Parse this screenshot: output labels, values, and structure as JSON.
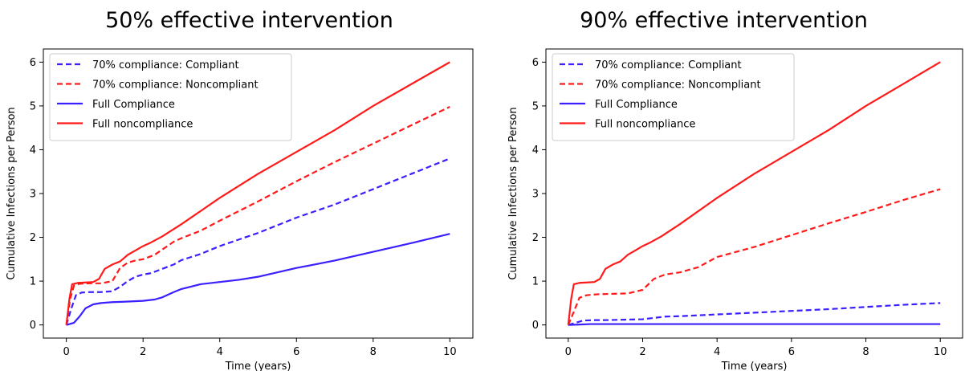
{
  "chart_data": [
    {
      "type": "line",
      "title": "50% effective intervention",
      "xlabel": "Time (years)",
      "ylabel": "Cumulative Infections per Person",
      "xlim": [
        -0.6,
        10.6
      ],
      "ylim": [
        -0.3,
        6.3
      ],
      "xticks": [
        0,
        2,
        4,
        6,
        8,
        10
      ],
      "yticks": [
        0,
        1,
        2,
        3,
        4,
        5,
        6
      ],
      "legend_position": "top-left",
      "series": [
        {
          "name": "70% compliance: Compliant",
          "color": "#3a1fff",
          "style": "dashed",
          "x": [
            0,
            0.12,
            0.25,
            0.4,
            0.6,
            0.9,
            1.2,
            1.4,
            1.6,
            1.8,
            2.0,
            2.2,
            2.5,
            2.8,
            3.0,
            3.5,
            4.0,
            5.0,
            6.0,
            7.0,
            8.0,
            9.0,
            10.0
          ],
          "y": [
            0,
            0.35,
            0.68,
            0.74,
            0.75,
            0.75,
            0.77,
            0.87,
            1.0,
            1.1,
            1.15,
            1.18,
            1.28,
            1.38,
            1.48,
            1.62,
            1.8,
            2.1,
            2.45,
            2.75,
            3.1,
            3.45,
            3.8
          ]
        },
        {
          "name": "70% compliance: Noncompliant",
          "color": "#ff1a1a",
          "style": "dashed",
          "x": [
            0,
            0.1,
            0.2,
            0.35,
            0.6,
            0.9,
            1.2,
            1.4,
            1.6,
            1.8,
            2.0,
            2.3,
            2.6,
            2.8,
            3.0,
            3.5,
            4.0,
            5.0,
            6.0,
            7.0,
            8.0,
            9.0,
            10.0
          ],
          "y": [
            0,
            0.6,
            0.9,
            0.94,
            0.95,
            0.95,
            1.0,
            1.3,
            1.42,
            1.47,
            1.5,
            1.6,
            1.78,
            1.9,
            1.98,
            2.15,
            2.38,
            2.82,
            3.28,
            3.72,
            4.14,
            4.56,
            4.98
          ]
        },
        {
          "name": "Full Compliance",
          "color": "#3a1fff",
          "style": "solid",
          "x": [
            0,
            0.2,
            0.35,
            0.5,
            0.7,
            0.9,
            1.2,
            1.5,
            2.0,
            2.3,
            2.5,
            2.8,
            3.0,
            3.5,
            4.0,
            4.5,
            5.0,
            5.5,
            6.0,
            7.0,
            8.0,
            9.0,
            10.0
          ],
          "y": [
            0,
            0.05,
            0.2,
            0.38,
            0.47,
            0.5,
            0.52,
            0.53,
            0.55,
            0.58,
            0.63,
            0.75,
            0.82,
            0.93,
            0.98,
            1.03,
            1.1,
            1.2,
            1.3,
            1.47,
            1.67,
            1.87,
            2.08
          ]
        },
        {
          "name": "Full noncompliance",
          "color": "#ff1a1a",
          "style": "solid",
          "x": [
            0,
            0.08,
            0.15,
            0.3,
            0.5,
            0.7,
            0.85,
            1.0,
            1.2,
            1.4,
            1.6,
            1.8,
            2.0,
            2.2,
            2.5,
            3.0,
            4.0,
            5.0,
            6.0,
            7.0,
            8.0,
            9.0,
            10.0
          ],
          "y": [
            0,
            0.6,
            0.93,
            0.96,
            0.97,
            0.98,
            1.05,
            1.28,
            1.38,
            1.45,
            1.6,
            1.7,
            1.8,
            1.88,
            2.02,
            2.3,
            2.9,
            3.45,
            3.95,
            4.45,
            5.0,
            5.5,
            6.0
          ]
        }
      ]
    },
    {
      "type": "line",
      "title": "90% effective intervention",
      "xlabel": "Time (years)",
      "ylabel": "Cumulative Infections per Person",
      "xlim": [
        -0.6,
        10.6
      ],
      "ylim": [
        -0.3,
        6.3
      ],
      "xticks": [
        0,
        2,
        4,
        6,
        8,
        10
      ],
      "yticks": [
        0,
        1,
        2,
        3,
        4,
        5,
        6
      ],
      "legend_position": "top-left",
      "series": [
        {
          "name": "70% compliance: Compliant",
          "color": "#3a1fff",
          "style": "dashed",
          "x": [
            0,
            0.2,
            0.4,
            0.7,
            1.0,
            1.5,
            2.0,
            2.3,
            2.6,
            3.0,
            4.0,
            5.0,
            6.0,
            7.0,
            8.0,
            9.0,
            10.0
          ],
          "y": [
            0,
            0.05,
            0.1,
            0.11,
            0.11,
            0.12,
            0.13,
            0.16,
            0.19,
            0.2,
            0.24,
            0.28,
            0.32,
            0.36,
            0.41,
            0.46,
            0.5
          ]
        },
        {
          "name": "70% compliance: Noncompliant",
          "color": "#ff1a1a",
          "style": "dashed",
          "x": [
            0,
            0.15,
            0.3,
            0.5,
            0.8,
            1.2,
            1.6,
            2.0,
            2.3,
            2.6,
            3.0,
            3.5,
            4.0,
            5.0,
            6.0,
            7.0,
            8.0,
            9.0,
            10.0
          ],
          "y": [
            0,
            0.3,
            0.62,
            0.68,
            0.7,
            0.71,
            0.72,
            0.8,
            1.05,
            1.15,
            1.2,
            1.32,
            1.55,
            1.78,
            2.05,
            2.32,
            2.58,
            2.85,
            3.1
          ]
        },
        {
          "name": "Full Compliance",
          "color": "#3a1fff",
          "style": "solid",
          "x": [
            0,
            0.3,
            0.6,
            1.0,
            2.0,
            4.0,
            6.0,
            8.0,
            10.0
          ],
          "y": [
            0,
            0.01,
            0.02,
            0.02,
            0.02,
            0.02,
            0.02,
            0.02,
            0.02
          ]
        },
        {
          "name": "Full noncompliance",
          "color": "#ff1a1a",
          "style": "solid",
          "x": [
            0,
            0.08,
            0.15,
            0.3,
            0.5,
            0.7,
            0.85,
            1.0,
            1.2,
            1.4,
            1.6,
            1.8,
            2.0,
            2.2,
            2.5,
            3.0,
            4.0,
            5.0,
            6.0,
            7.0,
            8.0,
            9.0,
            10.0
          ],
          "y": [
            0,
            0.6,
            0.93,
            0.96,
            0.97,
            0.98,
            1.05,
            1.28,
            1.38,
            1.45,
            1.6,
            1.7,
            1.8,
            1.88,
            2.02,
            2.3,
            2.9,
            3.45,
            3.95,
            4.45,
            5.0,
            5.5,
            6.0
          ]
        }
      ]
    }
  ]
}
